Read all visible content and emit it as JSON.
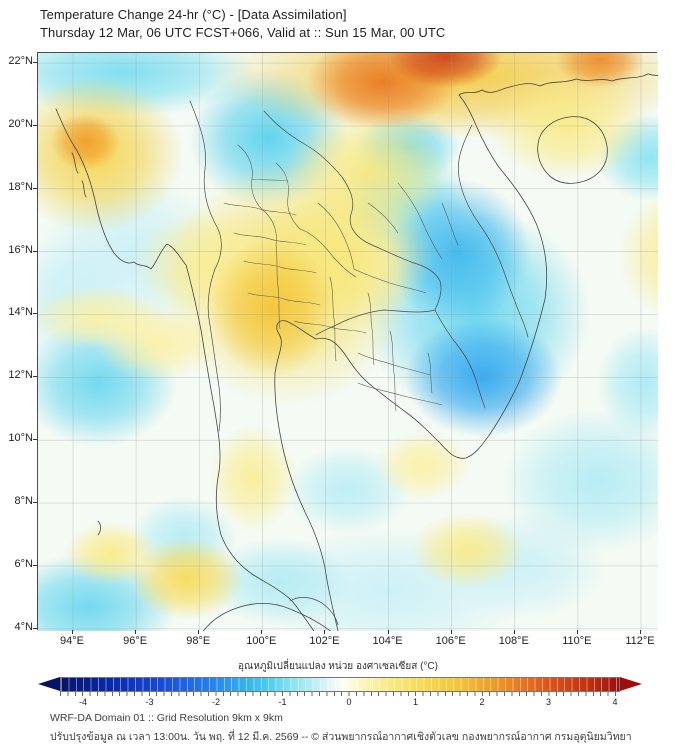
{
  "header": {
    "title": "Temperature Change 24-hr (°C) - [Data Assimilation]",
    "subtitle": "Thursday 12 Mar, 06 UTC FCST+066, Valid at :: Sun 15 Mar, 00 UTC"
  },
  "chart_data": {
    "type": "heatmap",
    "title": "Temperature Change 24-hr (°C) - [Data Assimilation]",
    "subtitle": "Thursday 12 Mar, 06 UTC FCST+066, Valid at :: Sun 15 Mar, 00 UTC",
    "region": "Thailand / Indochina WRF-DA Domain 01",
    "axes": {
      "lon": {
        "min": 92.89,
        "max": 112.54,
        "ticks": [
          {
            "deg": 94,
            "label": "94°E"
          },
          {
            "deg": 96,
            "label": "96°E"
          },
          {
            "deg": 98,
            "label": "98°E"
          },
          {
            "deg": 100,
            "label": "100°E"
          },
          {
            "deg": 102,
            "label": "102°E"
          },
          {
            "deg": 104,
            "label": "104°E"
          },
          {
            "deg": 106,
            "label": "106°E"
          },
          {
            "deg": 108,
            "label": "108°E"
          },
          {
            "deg": 110,
            "label": "110°E"
          },
          {
            "deg": 112,
            "label": "112°E"
          }
        ]
      },
      "lat": {
        "min": 3.93,
        "max": 22.32,
        "ticks": [
          {
            "deg": 22,
            "label": "22°N"
          },
          {
            "deg": 20,
            "label": "20°N"
          },
          {
            "deg": 18,
            "label": "18°N"
          },
          {
            "deg": 16,
            "label": "16°N"
          },
          {
            "deg": 14,
            "label": "14°N"
          },
          {
            "deg": 12,
            "label": "12°N"
          },
          {
            "deg": 10,
            "label": "10°N"
          },
          {
            "deg": 8,
            "label": "8°N"
          },
          {
            "deg": 6,
            "label": "6°N"
          },
          {
            "deg": 4,
            "label": "4°N"
          }
        ]
      },
      "grid": true
    },
    "colorbar": {
      "label": "อุณหภูมิเปลี่ยนแปลง หน่วย องศาเซลเซียส (°C)",
      "unit": "°C",
      "min": -4,
      "max": 4,
      "ticks": [
        "-4",
        "-3",
        "-2",
        "-1",
        "0",
        "1",
        "2",
        "3",
        "4"
      ],
      "stops": [
        {
          "v": -4.0,
          "c": "#07136b"
        },
        {
          "v": -3.2,
          "c": "#0b2bb4"
        },
        {
          "v": -2.6,
          "c": "#1747d8"
        },
        {
          "v": -2.0,
          "c": "#2173ec"
        },
        {
          "v": -1.5,
          "c": "#2fa4ef"
        },
        {
          "v": -1.1,
          "c": "#41c8ec"
        },
        {
          "v": -0.7,
          "c": "#86e2f1"
        },
        {
          "v": -0.3,
          "c": "#c9f0f6"
        },
        {
          "v": -0.05,
          "c": "#f2fbf7"
        },
        {
          "v": 0.05,
          "c": "#fffef4"
        },
        {
          "v": 0.3,
          "c": "#fcf5c0"
        },
        {
          "v": 0.7,
          "c": "#f9ea84"
        },
        {
          "v": 1.2,
          "c": "#f6d94f"
        },
        {
          "v": 1.7,
          "c": "#f3c437"
        },
        {
          "v": 2.2,
          "c": "#ef9b28"
        },
        {
          "v": 2.7,
          "c": "#e76c1d"
        },
        {
          "v": 3.2,
          "c": "#d84414"
        },
        {
          "v": 3.6,
          "c": "#c32b10"
        },
        {
          "v": 4.0,
          "c": "#9e0e0e"
        }
      ]
    },
    "anomaly_centers_c": [
      {
        "lon": 95.8,
        "lat": 15.9,
        "value_c": -0.3,
        "rx_deg": 3.0,
        "ry_deg": 2.6
      },
      {
        "lon": 93.8,
        "lat": 14.5,
        "value_c": -0.3,
        "rx_deg": 2.0,
        "ry_deg": 2.0
      },
      {
        "lon": 104.0,
        "lat": 5.2,
        "value_c": -0.3,
        "rx_deg": 4.5,
        "ry_deg": 2.0
      },
      {
        "lon": 108.3,
        "lat": 6.0,
        "value_c": -0.3,
        "rx_deg": 2.6,
        "ry_deg": 1.7
      },
      {
        "lon": 110.6,
        "lat": 8.7,
        "value_c": -0.45,
        "rx_deg": 3.0,
        "ry_deg": 2.3
      },
      {
        "lon": 102.7,
        "lat": 8.4,
        "value_c": -0.4,
        "rx_deg": 2.0,
        "ry_deg": 1.4
      },
      {
        "lon": 100.5,
        "lat": 5.5,
        "value_c": -0.45,
        "rx_deg": 2.3,
        "ry_deg": 1.4
      },
      {
        "lon": 112.1,
        "lat": 11.8,
        "value_c": -0.5,
        "rx_deg": 1.5,
        "ry_deg": 1.8
      },
      {
        "lon": 97.5,
        "lat": 6.9,
        "value_c": -0.45,
        "rx_deg": 1.7,
        "ry_deg": 1.3
      },
      {
        "lon": 95.6,
        "lat": 21.7,
        "value_c": -0.8,
        "rx_deg": 4.2,
        "ry_deg": 1.4
      },
      {
        "lon": 100.2,
        "lat": 19.6,
        "value_c": -1.0,
        "rx_deg": 2.5,
        "ry_deg": 2.2
      },
      {
        "lon": 104.6,
        "lat": 19.3,
        "value_c": -0.9,
        "rx_deg": 1.7,
        "ry_deg": 1.1
      },
      {
        "lon": 104.5,
        "lat": 17.6,
        "value_c": -0.7,
        "rx_deg": 2.0,
        "ry_deg": 2.0
      },
      {
        "lon": 106.8,
        "lat": 14.0,
        "value_c": -0.9,
        "rx_deg": 3.6,
        "ry_deg": 3.3
      },
      {
        "lon": 94.8,
        "lat": 11.8,
        "value_c": -0.9,
        "rx_deg": 2.5,
        "ry_deg": 2.0
      },
      {
        "lon": 94.5,
        "lat": 4.7,
        "value_c": -0.9,
        "rx_deg": 2.8,
        "ry_deg": 1.7
      },
      {
        "lon": 112.3,
        "lat": 19.0,
        "value_c": -0.7,
        "rx_deg": 1.7,
        "ry_deg": 1.4
      },
      {
        "lon": 106.2,
        "lat": 16.0,
        "value_c": -1.3,
        "rx_deg": 2.3,
        "ry_deg": 2.3
      },
      {
        "lon": 107.0,
        "lat": 12.0,
        "value_c": -1.5,
        "rx_deg": 2.5,
        "ry_deg": 1.9
      },
      {
        "lon": 106.2,
        "lat": 21.6,
        "value_c": 1.6,
        "rx_deg": 7.7,
        "ry_deg": 2.0
      },
      {
        "lon": 109.7,
        "lat": 20.0,
        "value_c": 0.7,
        "rx_deg": 2.6,
        "ry_deg": 1.7
      },
      {
        "lon": 113.0,
        "lat": 15.9,
        "value_c": 0.6,
        "rx_deg": 1.7,
        "ry_deg": 2.0
      },
      {
        "lon": 103.3,
        "lat": 18.5,
        "value_c": 0.8,
        "rx_deg": 2.6,
        "ry_deg": 2.0
      },
      {
        "lon": 100.8,
        "lat": 15.0,
        "value_c": 1.0,
        "rx_deg": 3.9,
        "ry_deg": 3.9
      },
      {
        "lon": 102.4,
        "lat": 15.9,
        "value_c": 0.8,
        "rx_deg": 3.0,
        "ry_deg": 2.3
      },
      {
        "lon": 98.3,
        "lat": 15.6,
        "value_c": 0.6,
        "rx_deg": 2.3,
        "ry_deg": 1.8
      },
      {
        "lon": 96.7,
        "lat": 13.1,
        "value_c": 0.5,
        "rx_deg": 2.0,
        "ry_deg": 1.2
      },
      {
        "lon": 94.8,
        "lat": 13.9,
        "value_c": 0.5,
        "rx_deg": 2.2,
        "ry_deg": 1.0
      },
      {
        "lon": 94.7,
        "lat": 19.1,
        "value_c": 1.4,
        "rx_deg": 2.8,
        "ry_deg": 2.5
      },
      {
        "lon": 99.7,
        "lat": 8.8,
        "value_c": 0.6,
        "rx_deg": 1.4,
        "ry_deg": 1.7
      },
      {
        "lon": 105.1,
        "lat": 9.2,
        "value_c": 0.5,
        "rx_deg": 1.5,
        "ry_deg": 1.1
      },
      {
        "lon": 106.5,
        "lat": 6.5,
        "value_c": 0.7,
        "rx_deg": 1.8,
        "ry_deg": 1.2
      },
      {
        "lon": 95.2,
        "lat": 6.4,
        "value_c": 0.7,
        "rx_deg": 1.5,
        "ry_deg": 1.0
      },
      {
        "lon": 97.6,
        "lat": 5.6,
        "value_c": 1.2,
        "rx_deg": 1.8,
        "ry_deg": 1.3
      },
      {
        "lon": 100.3,
        "lat": 14.2,
        "value_c": 1.7,
        "rx_deg": 2.0,
        "ry_deg": 2.2
      },
      {
        "lon": 94.4,
        "lat": 19.5,
        "value_c": 2.2,
        "rx_deg": 1.1,
        "ry_deg": 0.9
      },
      {
        "lon": 103.8,
        "lat": 21.4,
        "value_c": 2.6,
        "rx_deg": 2.4,
        "ry_deg": 1.5
      },
      {
        "lon": 110.7,
        "lat": 22.1,
        "value_c": 2.4,
        "rx_deg": 1.4,
        "ry_deg": 0.9
      },
      {
        "lon": 105.8,
        "lat": 22.2,
        "value_c": 3.4,
        "rx_deg": 1.8,
        "ry_deg": 1.0
      }
    ]
  },
  "footer": {
    "line1": "WRF-DA Domain 01 :: Grid Resolution 9km x 9km",
    "line2": "ปรับปรุงข้อมูล ณ เวลา 13:00น. วัน พฤ. ที่ 12 มี.ค. 2569 -- © ส่วนพยากรณ์อากาศเชิงตัวเลข กองพยากรณ์อากาศ กรมอุตุนิยมวิทยา"
  }
}
